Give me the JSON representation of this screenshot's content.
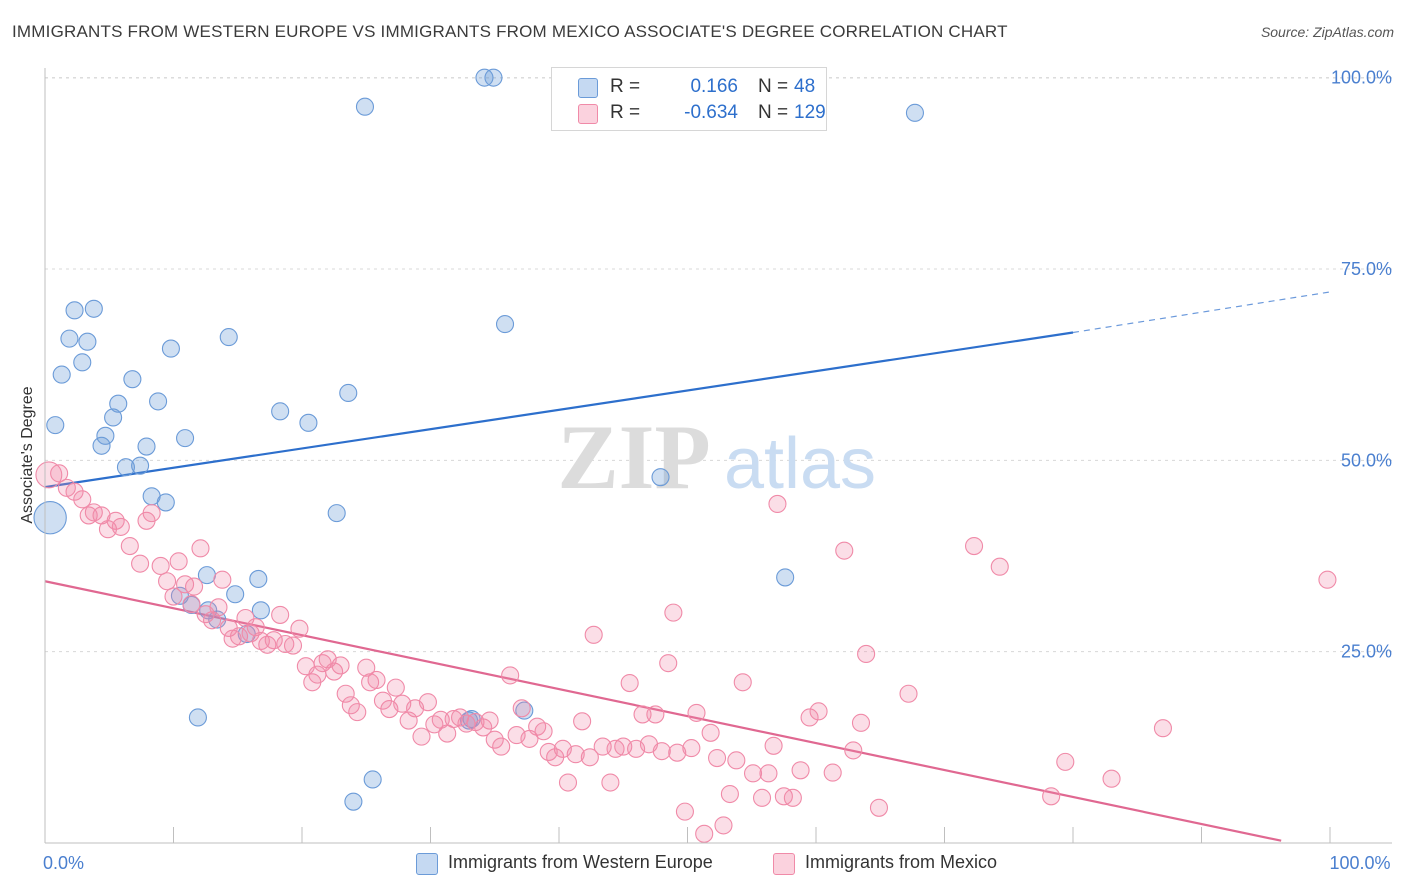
{
  "title": "IMMIGRANTS FROM WESTERN EUROPE VS IMMIGRANTS FROM MEXICO ASSOCIATE'S DEGREE CORRELATION CHART",
  "source": "Source: ZipAtlas.com",
  "watermark": {
    "zip": "ZIP",
    "atlas": "atlas"
  },
  "legend": {
    "r_label": "R =",
    "n_label": "N =",
    "rows": [
      {
        "r": "0.166",
        "n": "48",
        "color": "#6b9bd8"
      },
      {
        "r": "-0.634",
        "n": "129",
        "color": "#f08aa8"
      }
    ]
  },
  "bottom_legend": [
    {
      "label": "Immigrants from Western Europe",
      "color": "#6b9bd8"
    },
    {
      "label": "Immigrants from Mexico",
      "color": "#f08aa8"
    }
  ],
  "chart_data": {
    "type": "scatter",
    "title": "IMMIGRANTS FROM WESTERN EUROPE VS IMMIGRANTS FROM MEXICO ASSOCIATE'S DEGREE CORRELATION CHART",
    "xlabel": "",
    "ylabel": "Associate's Degree",
    "xlim": [
      0,
      100
    ],
    "ylim": [
      0,
      101
    ],
    "x_tick_labels": [
      {
        "value": 0,
        "label": "0.0%"
      },
      {
        "value": 100,
        "label": "100.0%"
      }
    ],
    "y_tick_labels": [
      {
        "value": 25,
        "label": "25.0%"
      },
      {
        "value": 50,
        "label": "50.0%"
      },
      {
        "value": 75,
        "label": "75.0%"
      },
      {
        "value": 100,
        "label": "100.0%"
      }
    ],
    "grid": true,
    "colors": {
      "blue": "#6b9bd8",
      "blue_line": "#2d6fcc",
      "pink": "#f08aa8",
      "pink_line": "#e06891",
      "axis_text": "#4a7fcf"
    },
    "series": [
      {
        "name": "Immigrants from Western Europe",
        "color": "#6b9bd8",
        "r": 0.166,
        "n": 48,
        "trend": {
          "x0": 0,
          "y0": 46.5,
          "x1": 80,
          "y1": 66.7,
          "dash_to_x": 100,
          "dash_to_y": 72.0
        },
        "points": [
          [
            0.4,
            42.5,
            2.0
          ],
          [
            0.8,
            54.6,
            1.0
          ],
          [
            1.3,
            61.2,
            1.0
          ],
          [
            1.9,
            65.9,
            1.0
          ],
          [
            2.3,
            69.6,
            1.0
          ],
          [
            2.9,
            62.8,
            1.0
          ],
          [
            3.3,
            65.5,
            1.0
          ],
          [
            3.8,
            69.8,
            1.0
          ],
          [
            4.4,
            51.9,
            1.0
          ],
          [
            4.7,
            53.2,
            1.0
          ],
          [
            5.3,
            55.6,
            1.0
          ],
          [
            5.7,
            57.4,
            1.0
          ],
          [
            6.3,
            49.1,
            1.0
          ],
          [
            6.8,
            60.6,
            1.0
          ],
          [
            7.4,
            49.3,
            1.0
          ],
          [
            7.9,
            51.8,
            1.0
          ],
          [
            8.3,
            45.3,
            1.0
          ],
          [
            8.8,
            57.7,
            1.0
          ],
          [
            9.4,
            44.5,
            1.0
          ],
          [
            9.8,
            64.6,
            1.0
          ],
          [
            10.5,
            32.3,
            1.0
          ],
          [
            10.9,
            52.9,
            1.0
          ],
          [
            11.4,
            31.1,
            1.0
          ],
          [
            11.9,
            16.4,
            1.0
          ],
          [
            12.7,
            30.4,
            1.0
          ],
          [
            13.4,
            29.2,
            1.0
          ],
          [
            12.6,
            35.0,
            1.0
          ],
          [
            14.8,
            32.5,
            1.0
          ],
          [
            14.3,
            66.1,
            1.0
          ],
          [
            15.7,
            27.3,
            1.0
          ],
          [
            16.6,
            34.5,
            1.0
          ],
          [
            16.8,
            30.4,
            1.0
          ],
          [
            18.3,
            56.4,
            1.0
          ],
          [
            20.5,
            54.9,
            1.0
          ],
          [
            22.7,
            43.1,
            1.0
          ],
          [
            23.6,
            58.8,
            1.0
          ],
          [
            24.0,
            5.4,
            1.0
          ],
          [
            24.9,
            96.2,
            1.0
          ],
          [
            25.5,
            8.3,
            1.0
          ],
          [
            34.2,
            100.0,
            1.0
          ],
          [
            34.9,
            100.0,
            1.0
          ],
          [
            33.2,
            16.2,
            1.0
          ],
          [
            33.0,
            16.0,
            1.0
          ],
          [
            35.8,
            67.8,
            1.0
          ],
          [
            37.3,
            17.3,
            1.0
          ],
          [
            47.9,
            47.8,
            1.0
          ],
          [
            57.6,
            34.7,
            1.0
          ],
          [
            67.7,
            95.4,
            1.0
          ]
        ]
      },
      {
        "name": "Immigrants from Mexico",
        "color": "#f08aa8",
        "r": -0.634,
        "n": 129,
        "trend": {
          "x0": 0,
          "y0": 34.2,
          "x1": 96.2,
          "y1": 0.3
        },
        "points": [
          [
            0.3,
            48.1,
            1.6
          ],
          [
            1.1,
            48.3,
            1.0
          ],
          [
            1.7,
            46.4,
            1.0
          ],
          [
            2.3,
            45.9,
            1.0
          ],
          [
            2.9,
            44.9,
            1.0
          ],
          [
            3.4,
            42.8,
            1.0
          ],
          [
            3.8,
            43.2,
            1.0
          ],
          [
            4.4,
            42.8,
            1.0
          ],
          [
            4.9,
            41.0,
            1.0
          ],
          [
            5.5,
            42.1,
            1.0
          ],
          [
            5.9,
            41.3,
            1.0
          ],
          [
            6.6,
            38.8,
            1.0
          ],
          [
            7.4,
            36.5,
            1.0
          ],
          [
            7.9,
            42.1,
            1.0
          ],
          [
            8.3,
            43.1,
            1.0
          ],
          [
            9.0,
            36.2,
            1.0
          ],
          [
            9.5,
            34.2,
            1.0
          ],
          [
            10.0,
            32.2,
            1.0
          ],
          [
            10.4,
            36.8,
            1.0
          ],
          [
            10.9,
            33.8,
            1.0
          ],
          [
            11.4,
            31.2,
            1.0
          ],
          [
            11.6,
            33.5,
            1.0
          ],
          [
            12.1,
            38.5,
            1.0
          ],
          [
            12.5,
            29.9,
            1.0
          ],
          [
            13.0,
            29.1,
            1.0
          ],
          [
            13.5,
            30.8,
            1.0
          ],
          [
            13.8,
            34.4,
            1.0
          ],
          [
            14.3,
            28.1,
            1.0
          ],
          [
            14.6,
            26.7,
            1.0
          ],
          [
            15.1,
            27.0,
            1.0
          ],
          [
            15.6,
            29.4,
            1.0
          ],
          [
            16.0,
            27.4,
            1.0
          ],
          [
            16.4,
            28.2,
            1.0
          ],
          [
            16.8,
            26.4,
            1.0
          ],
          [
            17.3,
            25.9,
            1.0
          ],
          [
            17.8,
            26.5,
            1.0
          ],
          [
            18.3,
            29.8,
            1.0
          ],
          [
            18.7,
            26.0,
            1.0
          ],
          [
            19.3,
            25.8,
            1.0
          ],
          [
            19.8,
            28.0,
            1.0
          ],
          [
            20.3,
            23.1,
            1.0
          ],
          [
            20.8,
            21.0,
            1.0
          ],
          [
            21.2,
            22.0,
            1.0
          ],
          [
            21.6,
            23.5,
            1.0
          ],
          [
            22.0,
            24.0,
            1.0
          ],
          [
            22.5,
            22.4,
            1.0
          ],
          [
            23.0,
            23.2,
            1.0
          ],
          [
            23.4,
            19.5,
            1.0
          ],
          [
            23.8,
            18.0,
            1.0
          ],
          [
            24.3,
            17.1,
            1.0
          ],
          [
            25.0,
            22.9,
            1.0
          ],
          [
            25.3,
            21.0,
            1.0
          ],
          [
            25.8,
            21.3,
            1.0
          ],
          [
            26.3,
            18.6,
            1.0
          ],
          [
            26.8,
            17.5,
            1.0
          ],
          [
            27.3,
            20.3,
            1.0
          ],
          [
            27.8,
            18.2,
            1.0
          ],
          [
            28.3,
            16.0,
            1.0
          ],
          [
            28.8,
            17.6,
            1.0
          ],
          [
            29.3,
            13.9,
            1.0
          ],
          [
            29.8,
            18.4,
            1.0
          ],
          [
            30.3,
            15.5,
            1.0
          ],
          [
            30.8,
            16.1,
            1.0
          ],
          [
            31.3,
            14.3,
            1.0
          ],
          [
            31.8,
            16.2,
            1.0
          ],
          [
            32.3,
            16.4,
            1.0
          ],
          [
            32.8,
            15.6,
            1.0
          ],
          [
            33.5,
            15.8,
            1.0
          ],
          [
            34.1,
            15.1,
            1.0
          ],
          [
            34.6,
            16.0,
            1.0
          ],
          [
            35.0,
            13.5,
            1.0
          ],
          [
            35.5,
            12.6,
            1.0
          ],
          [
            36.2,
            21.9,
            1.0
          ],
          [
            36.7,
            14.1,
            1.0
          ],
          [
            37.1,
            17.6,
            1.0
          ],
          [
            37.7,
            13.6,
            1.0
          ],
          [
            38.3,
            15.2,
            1.0
          ],
          [
            38.8,
            14.6,
            1.0
          ],
          [
            39.2,
            11.9,
            1.0
          ],
          [
            39.7,
            11.2,
            1.0
          ],
          [
            40.3,
            12.3,
            1.0
          ],
          [
            40.7,
            7.9,
            1.0
          ],
          [
            41.3,
            11.6,
            1.0
          ],
          [
            41.8,
            15.9,
            1.0
          ],
          [
            42.4,
            11.2,
            1.0
          ],
          [
            42.7,
            27.2,
            1.0
          ],
          [
            43.4,
            12.6,
            1.0
          ],
          [
            44.0,
            7.9,
            1.0
          ],
          [
            44.4,
            12.3,
            1.0
          ],
          [
            45.0,
            12.6,
            1.0
          ],
          [
            45.5,
            20.9,
            1.0
          ],
          [
            46.0,
            12.3,
            1.0
          ],
          [
            46.5,
            16.8,
            1.0
          ],
          [
            47.0,
            12.9,
            1.0
          ],
          [
            47.5,
            16.8,
            1.0
          ],
          [
            48.0,
            12.0,
            1.0
          ],
          [
            48.5,
            23.5,
            1.0
          ],
          [
            49.2,
            11.8,
            1.0
          ],
          [
            49.8,
            4.1,
            1.0
          ],
          [
            48.9,
            30.1,
            1.0
          ],
          [
            50.3,
            12.4,
            1.0
          ],
          [
            50.7,
            17.0,
            1.0
          ],
          [
            51.3,
            1.2,
            1.0
          ],
          [
            51.8,
            14.4,
            1.0
          ],
          [
            52.3,
            11.1,
            1.0
          ],
          [
            52.8,
            2.3,
            1.0
          ],
          [
            53.3,
            6.4,
            1.0
          ],
          [
            53.8,
            10.8,
            1.0
          ],
          [
            54.3,
            21.0,
            1.0
          ],
          [
            55.1,
            9.1,
            1.0
          ],
          [
            55.8,
            5.9,
            1.0
          ],
          [
            56.3,
            9.1,
            1.0
          ],
          [
            56.7,
            12.7,
            1.0
          ],
          [
            57.0,
            44.3,
            1.0
          ],
          [
            57.5,
            6.1,
            1.0
          ],
          [
            58.2,
            5.9,
            1.0
          ],
          [
            58.8,
            9.5,
            1.0
          ],
          [
            59.5,
            16.4,
            1.0
          ],
          [
            60.2,
            17.2,
            1.0
          ],
          [
            61.3,
            9.2,
            1.0
          ],
          [
            62.9,
            12.1,
            1.0
          ],
          [
            63.5,
            15.7,
            1.0
          ],
          [
            63.9,
            24.7,
            1.0
          ],
          [
            64.9,
            4.6,
            1.0
          ],
          [
            67.2,
            19.5,
            1.0
          ],
          [
            62.2,
            38.2,
            1.0
          ],
          [
            72.3,
            38.8,
            1.0
          ],
          [
            74.3,
            36.1,
            1.0
          ],
          [
            78.3,
            6.1,
            1.0
          ],
          [
            79.4,
            10.6,
            1.0
          ],
          [
            83.0,
            8.4,
            1.0
          ],
          [
            87.0,
            15.0,
            1.0
          ],
          [
            99.8,
            34.4,
            1.0
          ]
        ]
      }
    ]
  }
}
